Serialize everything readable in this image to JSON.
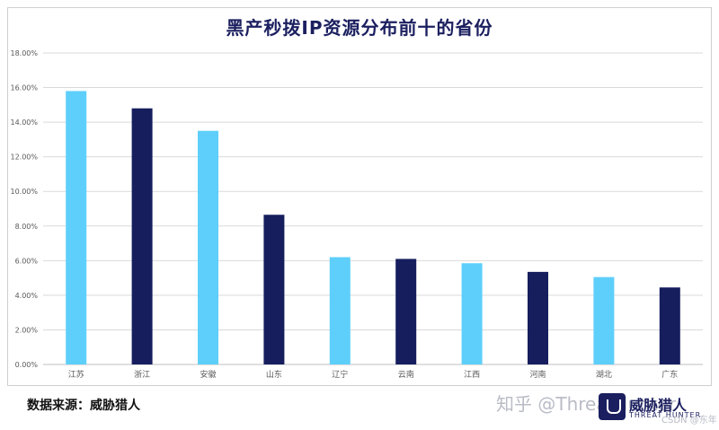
{
  "chart_data": {
    "type": "bar",
    "title": "黑产秒拨IP资源分布前十的省份",
    "categories": [
      "江苏",
      "浙江",
      "安徽",
      "山东",
      "辽宁",
      "云南",
      "江西",
      "河南",
      "湖北",
      "广东"
    ],
    "values": [
      15.8,
      14.8,
      13.5,
      8.65,
      6.2,
      6.1,
      5.85,
      5.35,
      5.05,
      4.45
    ],
    "ylim": [
      0,
      18
    ],
    "yticks": [
      "0.00%",
      "2.00%",
      "4.00%",
      "6.00%",
      "8.00%",
      "10.00%",
      "12.00%",
      "14.00%",
      "16.00%",
      "18.00%"
    ],
    "grid": true,
    "colors": {
      "light": "#5ecffa",
      "dark": "#161e5e",
      "grid": "#d9d9d9",
      "text": "#595959"
    }
  },
  "footer": {
    "source": "数据来源：威胁猎人"
  },
  "watermark": {
    "zhihu": "知乎 @ThreatHunter",
    "brand": "威胁猎人",
    "brand_sub": "THREAT HUNTER",
    "csdn": "CSDN @东年"
  }
}
